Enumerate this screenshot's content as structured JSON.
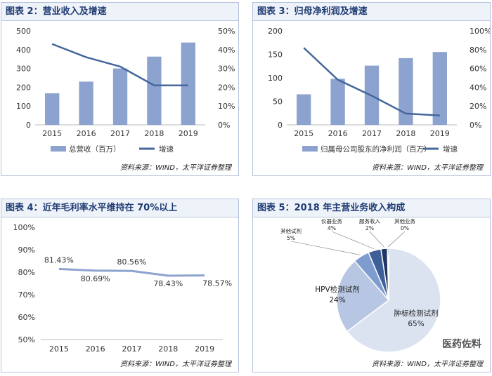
{
  "charts": {
    "c1": {
      "title": "图表 2：营业收入及增速",
      "source": "资料来源：WIND，太平洋证券整理"
    },
    "c2": {
      "title": "图表 3：归母净利润及增速",
      "source": "资料来源：WIND，太平洋证券整理"
    },
    "c3": {
      "title": "图表 4：近年毛利率水平维持在 70%以上",
      "source": "资料来源：WIND，太平洋证券整理"
    },
    "c4": {
      "title": "图表 5：2018 年主营业务收入构成",
      "source": "资料来源：WIND，太平洋证券整理"
    }
  },
  "watermark": "医药佐料",
  "chart_data": [
    {
      "type": "bar",
      "title": "图表 2：营业收入及增速",
      "categories": [
        "2015",
        "2016",
        "2017",
        "2018",
        "2019"
      ],
      "series": [
        {
          "name": "总营收（百万）",
          "type": "bar",
          "axis": "left",
          "values": [
            168,
            230,
            300,
            363,
            438
          ]
        },
        {
          "name": "增速",
          "type": "line",
          "axis": "right",
          "values": [
            43,
            36,
            31,
            21,
            21
          ]
        }
      ],
      "ylim": [
        0,
        500
      ],
      "yticks": [
        0,
        100,
        200,
        300,
        400,
        500
      ],
      "y2lim": [
        0,
        50
      ],
      "y2ticks": [
        "0%",
        "10%",
        "20%",
        "30%",
        "40%",
        "50%"
      ],
      "legend": "bottom",
      "colors": {
        "bar": "#8da3cf",
        "line": "#44679c"
      }
    },
    {
      "type": "bar",
      "title": "图表 3：归母净利润及增速",
      "categories": [
        "2015",
        "2016",
        "2017",
        "2018",
        "2019"
      ],
      "series": [
        {
          "name": "归属母公司股东的净利润（百万）",
          "type": "bar",
          "axis": "left",
          "values": [
            65,
            98,
            126,
            142,
            155
          ]
        },
        {
          "name": "增速",
          "type": "line",
          "axis": "right",
          "values": [
            82,
            48,
            31,
            12,
            10
          ]
        }
      ],
      "ylim": [
        0,
        200
      ],
      "yticks": [
        0,
        50,
        100,
        150,
        200
      ],
      "y2lim": [
        0,
        100
      ],
      "y2ticks": [
        "0%",
        "20%",
        "40%",
        "60%",
        "80%",
        "100%"
      ],
      "legend": "bottom",
      "colors": {
        "bar": "#8da3cf",
        "line": "#44679c"
      }
    },
    {
      "type": "line",
      "title": "图表 4：近年毛利率水平维持在 70%以上",
      "categories": [
        "2015",
        "2016",
        "2017",
        "2018",
        "2019"
      ],
      "series": [
        {
          "values": [
            81.43,
            80.69,
            80.56,
            78.43,
            78.57
          ]
        }
      ],
      "data_labels": [
        "81.43%",
        "80.69%",
        "80.56%",
        "78.43%",
        "78.57%"
      ],
      "ylim": [
        50,
        100
      ],
      "yticks": [
        "50%",
        "60%",
        "70%",
        "80%",
        "90%",
        "100%"
      ],
      "colors": {
        "line": "#8da3cf"
      }
    },
    {
      "type": "pie",
      "title": "图表 5：2018 年主营业务收入构成",
      "slices": [
        {
          "label": "肿标检测试剂",
          "pct": "65%",
          "value": 65,
          "color": "#dbe3f1"
        },
        {
          "label": "HPV检测试剂",
          "pct": "24%",
          "value": 24,
          "color": "#b7c6e2"
        },
        {
          "label": "其他试剂",
          "pct": "5%",
          "value": 5,
          "color": "#7f9ccf"
        },
        {
          "label": "仪器业务",
          "pct": "4%",
          "value": 4,
          "color": "#3f5f98"
        },
        {
          "label": "服务收入",
          "pct": "2%",
          "value": 2,
          "color": "#1f3563"
        },
        {
          "label": "其他业务",
          "pct": "0%",
          "value": 0.4,
          "color": "#0f1c3a"
        }
      ]
    }
  ]
}
